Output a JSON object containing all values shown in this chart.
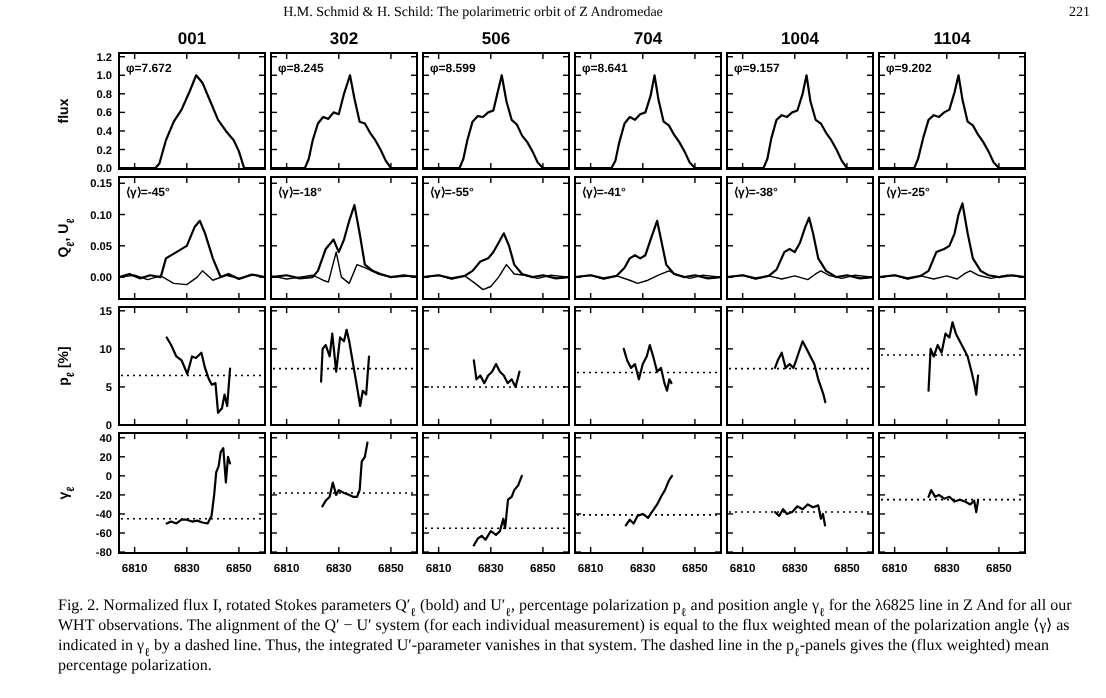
{
  "chart_data": [
    {
      "type": "line",
      "title": "001",
      "ylabel": "flux",
      "xlim": [
        6804,
        6860
      ],
      "xticks": [
        6810,
        6830,
        6850
      ],
      "ylim": [
        -0.01,
        1.24
      ],
      "yticks": [
        {
          "value": 0,
          "label": "0.0"
        },
        {
          "value": 0.2,
          "label": "0.2"
        },
        {
          "value": 0.4,
          "label": "0.4"
        },
        {
          "value": 0.6,
          "label": "0.6"
        },
        {
          "value": 0.8,
          "label": "0.8"
        },
        {
          "value": 1,
          "label": "1.0"
        },
        {
          "value": 1.2,
          "label": "1.2"
        }
      ],
      "tick_labels": "y",
      "annotations": [
        "φ=7.672"
      ],
      "series": [
        {
          "color": "#000000",
          "x": [
            6804,
            6818,
            6819.5,
            6822,
            6825,
            6828,
            6831,
            6833.6,
            6836,
            6839,
            6842,
            6845,
            6848,
            6850,
            6852,
            6860
          ],
          "values": [
            0,
            0,
            0.05,
            0.3,
            0.5,
            0.63,
            0.82,
            1.0,
            0.92,
            0.72,
            0.52,
            0.4,
            0.3,
            0.18,
            0,
            0
          ]
        }
      ]
    },
    {
      "type": "line",
      "title": "302",
      "xlim": [
        6804,
        6860
      ],
      "xticks": [
        6810,
        6830,
        6850
      ],
      "ylim": [
        -0.01,
        1.24
      ],
      "yticks": [
        0,
        0.2,
        0.4,
        0.6,
        0.8,
        1,
        1.2
      ],
      "tick_labels": false,
      "annotations": [
        "φ=8.245"
      ],
      "series": [
        {
          "color": "#000000",
          "x": [
            6804,
            6817,
            6818.5,
            6820,
            6822,
            6824,
            6826,
            6828,
            6830,
            6832,
            6834.3,
            6836,
            6838,
            6840,
            6842,
            6844,
            6846,
            6848,
            6850,
            6860
          ],
          "values": [
            0,
            0,
            0.1,
            0.3,
            0.48,
            0.55,
            0.53,
            0.6,
            0.58,
            0.8,
            1.0,
            0.75,
            0.5,
            0.48,
            0.38,
            0.3,
            0.2,
            0.08,
            0,
            0
          ]
        }
      ]
    },
    {
      "type": "line",
      "title": "506",
      "xlim": [
        6804,
        6860
      ],
      "xticks": [
        6810,
        6830,
        6850
      ],
      "ylim": [
        -0.01,
        1.24
      ],
      "yticks": [
        0,
        0.2,
        0.4,
        0.6,
        0.8,
        1,
        1.2
      ],
      "tick_labels": false,
      "annotations": [
        "φ=8.599"
      ],
      "series": [
        {
          "color": "#000000",
          "x": [
            6804,
            6818,
            6819.5,
            6821,
            6823,
            6825,
            6827,
            6829,
            6831,
            6832.5,
            6834.2,
            6836,
            6838,
            6840,
            6842,
            6844,
            6846,
            6848,
            6850,
            6860
          ],
          "values": [
            0,
            0,
            0.1,
            0.3,
            0.5,
            0.56,
            0.55,
            0.6,
            0.62,
            0.8,
            1.0,
            0.72,
            0.52,
            0.47,
            0.35,
            0.28,
            0.18,
            0.06,
            0,
            0
          ]
        }
      ]
    },
    {
      "type": "line",
      "title": "704",
      "xlim": [
        6804,
        6860
      ],
      "xticks": [
        6810,
        6830,
        6850
      ],
      "ylim": [
        -0.01,
        1.24
      ],
      "yticks": [
        0,
        0.2,
        0.4,
        0.6,
        0.8,
        1,
        1.2
      ],
      "tick_labels": false,
      "annotations": [
        "φ=8.641"
      ],
      "series": [
        {
          "color": "#000000",
          "x": [
            6804,
            6818,
            6819.5,
            6821,
            6823,
            6825,
            6827,
            6829,
            6831,
            6833,
            6834.5,
            6836,
            6838,
            6840,
            6842,
            6844,
            6846,
            6848,
            6850,
            6860
          ],
          "values": [
            0,
            0,
            0.08,
            0.28,
            0.48,
            0.55,
            0.52,
            0.58,
            0.6,
            0.78,
            1.0,
            0.74,
            0.5,
            0.46,
            0.36,
            0.28,
            0.18,
            0.06,
            0,
            0
          ]
        }
      ]
    },
    {
      "type": "line",
      "title": "1004",
      "xlim": [
        6804,
        6860
      ],
      "xticks": [
        6810,
        6830,
        6850
      ],
      "ylim": [
        -0.01,
        1.24
      ],
      "yticks": [
        0,
        0.2,
        0.4,
        0.6,
        0.8,
        1,
        1.2
      ],
      "tick_labels": false,
      "annotations": [
        "φ=9.157"
      ],
      "series": [
        {
          "color": "#000000",
          "x": [
            6804,
            6818,
            6819.5,
            6821,
            6823,
            6825,
            6827,
            6829,
            6831,
            6833,
            6834.5,
            6836,
            6838,
            6840,
            6842,
            6844,
            6846,
            6848,
            6850,
            6860
          ],
          "values": [
            0,
            0,
            0.1,
            0.32,
            0.52,
            0.57,
            0.55,
            0.6,
            0.62,
            0.8,
            1.0,
            0.72,
            0.52,
            0.48,
            0.38,
            0.3,
            0.2,
            0.08,
            0,
            0
          ]
        }
      ]
    },
    {
      "type": "line",
      "title": "1104",
      "xlim": [
        6804,
        6860
      ],
      "xticks": [
        6810,
        6830,
        6850
      ],
      "ylim": [
        -0.01,
        1.24
      ],
      "yticks": [
        0,
        0.2,
        0.4,
        0.6,
        0.8,
        1,
        1.2
      ],
      "tick_labels": false,
      "annotations": [
        "φ=9.202"
      ],
      "series": [
        {
          "color": "#000000",
          "x": [
            6804,
            6817.5,
            6819,
            6821,
            6823,
            6825,
            6827,
            6829,
            6831,
            6833,
            6834.5,
            6836,
            6838,
            6840,
            6842,
            6844,
            6846,
            6848,
            6850,
            6860
          ],
          "values": [
            0,
            0,
            0.1,
            0.33,
            0.52,
            0.57,
            0.55,
            0.6,
            0.63,
            0.82,
            1.0,
            0.74,
            0.5,
            0.46,
            0.36,
            0.28,
            0.18,
            0.06,
            0,
            0
          ]
        }
      ]
    },
    {
      "type": "line",
      "ylabel": "Q$_{ℓ}$, U$_{ℓ}$",
      "xlim": [
        6804,
        6860
      ],
      "xticks": [
        6810,
        6830,
        6850
      ],
      "ylim": [
        -0.035,
        0.16
      ],
      "yticks": [
        {
          "value": 0,
          "label": "0.00"
        },
        {
          "value": 0.05,
          "label": "0.05"
        },
        {
          "value": 0.1,
          "label": "0.10"
        },
        {
          "value": 0.15,
          "label": "0.15"
        }
      ],
      "tick_labels": "y",
      "annotations": [
        "⟨γ⟩=-45°"
      ],
      "series": [
        {
          "color": "#000000",
          "x": [
            6804,
            6808,
            6812,
            6816,
            6820,
            6822,
            6826,
            6830,
            6833,
            6835,
            6837,
            6840,
            6843,
            6846,
            6850,
            6855,
            6860
          ],
          "values": [
            0,
            0.005,
            -0.002,
            0.003,
            0,
            0.03,
            0.04,
            0.05,
            0.08,
            0.09,
            0.07,
            0.03,
            0,
            0.005,
            -0.003,
            0.004,
            0
          ]
        },
        {
          "color": "#000000",
          "x": [
            6804,
            6810,
            6815,
            6820,
            6825,
            6830,
            6834,
            6836,
            6840,
            6845,
            6850,
            6855,
            6860
          ],
          "values": [
            0,
            0.003,
            -0.004,
            0.002,
            -0.01,
            -0.012,
            0,
            0.01,
            -0.005,
            0.003,
            -0.002,
            0.004,
            0
          ]
        }
      ]
    },
    {
      "type": "line",
      "xlim": [
        6804,
        6860
      ],
      "xticks": [
        6810,
        6830,
        6850
      ],
      "ylim": [
        -0.035,
        0.16
      ],
      "yticks": [
        0,
        0.05,
        0.1,
        0.15
      ],
      "tick_labels": false,
      "annotations": [
        "⟨γ⟩=-18°"
      ],
      "series": [
        {
          "color": "#000000",
          "x": [
            6804,
            6810,
            6815,
            6820,
            6822,
            6825,
            6828,
            6830,
            6832,
            6834,
            6836,
            6838,
            6840,
            6843,
            6846,
            6850,
            6855,
            6860
          ],
          "values": [
            0,
            0.003,
            -0.002,
            0,
            0.01,
            0.045,
            0.06,
            0.04,
            0.06,
            0.09,
            0.115,
            0.07,
            0.02,
            0.01,
            0.005,
            0,
            0.003,
            0
          ]
        },
        {
          "color": "#000000",
          "x": [
            6804,
            6810,
            6815,
            6820,
            6824,
            6826,
            6829,
            6831,
            6834,
            6837,
            6840,
            6845,
            6850,
            6860
          ],
          "values": [
            0.002,
            -0.003,
            0,
            0.003,
            -0.005,
            -0.008,
            0.04,
            0,
            -0.01,
            0.02,
            0.015,
            0.005,
            0,
            0.002
          ]
        }
      ]
    },
    {
      "type": "line",
      "xlim": [
        6804,
        6860
      ],
      "xticks": [
        6810,
        6830,
        6850
      ],
      "ylim": [
        -0.035,
        0.16
      ],
      "yticks": [
        0,
        0.05,
        0.1,
        0.15
      ],
      "tick_labels": false,
      "annotations": [
        "⟨γ⟩=-55°"
      ],
      "series": [
        {
          "color": "#000000",
          "x": [
            6804,
            6810,
            6815,
            6820,
            6823,
            6826,
            6829,
            6831,
            6833,
            6835,
            6837,
            6839,
            6842,
            6846,
            6850,
            6855,
            6860
          ],
          "values": [
            0,
            0.003,
            -0.002,
            0.002,
            0.01,
            0.025,
            0.03,
            0.04,
            0.055,
            0.07,
            0.05,
            0.02,
            0.005,
            0,
            0.003,
            -0.002,
            0
          ]
        },
        {
          "color": "#000000",
          "x": [
            6804,
            6810,
            6815,
            6820,
            6824,
            6827,
            6830,
            6833,
            6836,
            6839,
            6843,
            6848,
            6853,
            6860
          ],
          "values": [
            0,
            0.003,
            -0.003,
            0.002,
            -0.01,
            -0.02,
            -0.015,
            0,
            0.02,
            0.005,
            0.003,
            -0.002,
            0.003,
            0
          ]
        }
      ]
    },
    {
      "type": "line",
      "xlim": [
        6804,
        6860
      ],
      "xticks": [
        6810,
        6830,
        6850
      ],
      "ylim": [
        -0.035,
        0.16
      ],
      "yticks": [
        0,
        0.05,
        0.1,
        0.15
      ],
      "tick_labels": false,
      "annotations": [
        "⟨γ⟩=-41°"
      ],
      "series": [
        {
          "color": "#000000",
          "x": [
            6804,
            6810,
            6815,
            6820,
            6823,
            6825,
            6827,
            6829,
            6831,
            6833,
            6835.5,
            6837,
            6839,
            6842,
            6846,
            6850,
            6855,
            6860
          ],
          "values": [
            0,
            0.003,
            -0.002,
            0.002,
            0.015,
            0.03,
            0.035,
            0.03,
            0.035,
            0.06,
            0.09,
            0.06,
            0.02,
            0.005,
            0,
            0.003,
            -0.002,
            0
          ]
        },
        {
          "color": "#000000",
          "x": [
            6804,
            6810,
            6815,
            6820,
            6825,
            6828,
            6832,
            6836,
            6840,
            6843,
            6848,
            6853,
            6860
          ],
          "values": [
            0,
            0.003,
            -0.003,
            0.002,
            -0.005,
            -0.01,
            -0.005,
            0.003,
            0.01,
            0.004,
            -0.002,
            0.003,
            0
          ]
        }
      ]
    },
    {
      "type": "line",
      "xlim": [
        6804,
        6860
      ],
      "xticks": [
        6810,
        6830,
        6850
      ],
      "ylim": [
        -0.035,
        0.16
      ],
      "yticks": [
        0,
        0.05,
        0.1,
        0.15
      ],
      "tick_labels": false,
      "annotations": [
        "⟨γ⟩=-38°"
      ],
      "series": [
        {
          "color": "#000000",
          "x": [
            6804,
            6810,
            6815,
            6820,
            6823,
            6826,
            6828,
            6830,
            6832,
            6834,
            6835.5,
            6837,
            6839,
            6842,
            6846,
            6850,
            6855,
            6860
          ],
          "values": [
            0,
            0.003,
            -0.002,
            0.002,
            0.012,
            0.04,
            0.045,
            0.04,
            0.055,
            0.08,
            0.095,
            0.07,
            0.03,
            0.01,
            0,
            0.003,
            -0.002,
            0
          ]
        },
        {
          "color": "#000000",
          "x": [
            6804,
            6810,
            6815,
            6820,
            6825,
            6830,
            6835,
            6838,
            6840,
            6843,
            6848,
            6853,
            6860
          ],
          "values": [
            0,
            0.003,
            -0.003,
            0.002,
            -0.003,
            0.002,
            -0.004,
            0.005,
            0.01,
            0.003,
            -0.002,
            0.003,
            0
          ]
        }
      ]
    },
    {
      "type": "line",
      "xlim": [
        6804,
        6860
      ],
      "xticks": [
        6810,
        6830,
        6850
      ],
      "ylim": [
        -0.035,
        0.16
      ],
      "yticks": [
        0,
        0.05,
        0.1,
        0.15
      ],
      "tick_labels": false,
      "annotations": [
        "⟨γ⟩=-25°"
      ],
      "series": [
        {
          "color": "#000000",
          "x": [
            6804,
            6810,
            6815,
            6820,
            6823,
            6826,
            6829,
            6831,
            6833,
            6834.5,
            6836,
            6838,
            6840,
            6843,
            6846,
            6850,
            6855,
            6860
          ],
          "values": [
            0,
            0.003,
            -0.002,
            0.002,
            0.01,
            0.04,
            0.045,
            0.05,
            0.07,
            0.1,
            0.118,
            0.07,
            0.03,
            0.01,
            0.003,
            0,
            0.003,
            0
          ]
        },
        {
          "color": "#000000",
          "x": [
            6804,
            6810,
            6815,
            6820,
            6825,
            6830,
            6834,
            6837,
            6839,
            6842,
            6847,
            6853,
            6860
          ],
          "values": [
            0,
            0.003,
            -0.003,
            0.002,
            -0.003,
            0.002,
            -0.003,
            0.006,
            0.01,
            0.003,
            -0.002,
            0.003,
            0
          ]
        }
      ]
    },
    {
      "type": "line",
      "ylabel": "p$_{ℓ}$ [%]",
      "xlim": [
        6804,
        6860
      ],
      "xticks": [
        6810,
        6830,
        6850
      ],
      "ylim": [
        0,
        15.5
      ],
      "yticks": [
        0,
        5,
        10,
        15
      ],
      "tick_labels": "y",
      "ref_lines": [
        {
          "axis": "y",
          "value": 6.5,
          "line_style": "dotted"
        }
      ],
      "series": [
        {
          "color": "#000000",
          "x": [
            6822.3,
            6824,
            6826,
            6828,
            6830.2,
            6832,
            6833.5,
            6835.6,
            6837,
            6838.5,
            6839.6,
            6841,
            6842,
            6843.5,
            6844.5,
            6845.5,
            6846.6
          ],
          "values": [
            11.5,
            10.5,
            9,
            8.5,
            6.7,
            9,
            8.8,
            9.5,
            7.5,
            6,
            5.3,
            5.5,
            1.6,
            2.2,
            4,
            2.5,
            7.4
          ]
        }
      ]
    },
    {
      "type": "line",
      "xlim": [
        6804,
        6860
      ],
      "xticks": [
        6810,
        6830,
        6850
      ],
      "ylim": [
        0,
        15.5
      ],
      "yticks": [
        0,
        5,
        10,
        15
      ],
      "tick_labels": false,
      "ref_lines": [
        {
          "axis": "y",
          "value": 7.4,
          "line_style": "dotted"
        }
      ],
      "series": [
        {
          "color": "#000000",
          "x": [
            6823.2,
            6823.8,
            6825,
            6826.5,
            6827.5,
            6829,
            6830.5,
            6832,
            6833,
            6834,
            6835.5,
            6837,
            6838.2,
            6839.2,
            6840.5,
            6841.6
          ],
          "values": [
            5.7,
            10,
            10.5,
            9,
            12,
            7,
            11.5,
            11,
            12.5,
            11,
            8,
            5,
            2.5,
            4.5,
            4,
            9
          ]
        }
      ]
    },
    {
      "type": "line",
      "xlim": [
        6804,
        6860
      ],
      "xticks": [
        6810,
        6830,
        6850
      ],
      "ylim": [
        0,
        15.5
      ],
      "yticks": [
        0,
        5,
        10,
        15
      ],
      "tick_labels": false,
      "ref_lines": [
        {
          "axis": "y",
          "value": 5,
          "line_style": "dotted"
        }
      ],
      "series": [
        {
          "color": "#000000",
          "x": [
            6823.5,
            6824.5,
            6826,
            6827.5,
            6829,
            6830.5,
            6832,
            6833.5,
            6835,
            6836.5,
            6838,
            6839.5,
            6841
          ],
          "values": [
            8.5,
            6,
            6.5,
            5.5,
            6.5,
            7,
            8,
            7,
            6.5,
            5.5,
            6,
            5,
            7
          ]
        }
      ]
    },
    {
      "type": "line",
      "xlim": [
        6804,
        6860
      ],
      "xticks": [
        6810,
        6830,
        6850
      ],
      "ylim": [
        0,
        15.5
      ],
      "yticks": [
        0,
        5,
        10,
        15
      ],
      "tick_labels": false,
      "ref_lines": [
        {
          "axis": "y",
          "value": 6.9,
          "line_style": "dotted"
        }
      ],
      "series": [
        {
          "color": "#000000",
          "x": [
            6822.7,
            6824,
            6825.5,
            6827,
            6828.5,
            6830,
            6831.5,
            6832.7,
            6834,
            6835.5,
            6837,
            6838.3,
            6839.3,
            6840.2,
            6841
          ],
          "values": [
            10,
            8.5,
            7.5,
            8,
            6,
            8,
            9,
            10.5,
            9,
            7,
            7.5,
            5.5,
            4.5,
            6,
            5.5
          ]
        }
      ]
    },
    {
      "type": "line",
      "xlim": [
        6804,
        6860
      ],
      "xticks": [
        6810,
        6830,
        6850
      ],
      "ylim": [
        0,
        15.5
      ],
      "yticks": [
        0,
        5,
        10,
        15
      ],
      "tick_labels": false,
      "ref_lines": [
        {
          "axis": "y",
          "value": 7.4,
          "line_style": "dotted"
        }
      ],
      "series": [
        {
          "color": "#000000",
          "x": [
            6822.4,
            6823.5,
            6825,
            6826.5,
            6828,
            6829.5,
            6831,
            6833,
            6834.5,
            6836,
            6837.5,
            6839,
            6840,
            6841,
            6841.7
          ],
          "values": [
            7.5,
            8.5,
            9.5,
            7.5,
            8,
            7.5,
            9,
            11,
            10,
            9,
            8,
            6,
            5,
            4,
            3
          ]
        }
      ]
    },
    {
      "type": "line",
      "xlim": [
        6804,
        6860
      ],
      "xticks": [
        6810,
        6830,
        6850
      ],
      "ylim": [
        0,
        15.5
      ],
      "yticks": [
        0,
        5,
        10,
        15
      ],
      "tick_labels": false,
      "ref_lines": [
        {
          "axis": "y",
          "value": 9.2,
          "line_style": "dotted"
        }
      ],
      "series": [
        {
          "color": "#000000",
          "x": [
            6823,
            6823.8,
            6825,
            6826.5,
            6828,
            6829.5,
            6831,
            6832.2,
            6833.5,
            6835,
            6836.5,
            6838,
            6839.5,
            6840.5,
            6841.3,
            6842
          ],
          "values": [
            4.5,
            10,
            9,
            10.5,
            9.5,
            12,
            11.5,
            13.5,
            12,
            11,
            10,
            9,
            7,
            5.5,
            4,
            6.5
          ]
        }
      ]
    },
    {
      "type": "line",
      "ylabel": "γ$_{ℓ}$",
      "xlim": [
        6804,
        6860
      ],
      "xticks": [
        6810,
        6830,
        6850
      ],
      "ylim": [
        -81,
        45
      ],
      "yticks": [
        -80,
        -60,
        -40,
        -20,
        0,
        20,
        40
      ],
      "ref_lines": [
        {
          "axis": "y",
          "value": -45,
          "line_style": "dotted"
        }
      ],
      "series": [
        {
          "color": "#000000",
          "x": [
            6822.3,
            6824,
            6826,
            6828,
            6830,
            6832,
            6834,
            6836,
            6838,
            6839.5,
            6840.5,
            6841.3,
            6842.2,
            6843,
            6844,
            6845,
            6845.8,
            6846.6
          ],
          "values": [
            -50,
            -48,
            -50,
            -46,
            -46,
            -48,
            -47,
            -49,
            -50,
            -42,
            -20,
            4,
            10,
            25,
            29,
            -7,
            20,
            13
          ]
        }
      ]
    },
    {
      "type": "line",
      "xlim": [
        6804,
        6860
      ],
      "xticks": [
        6810,
        6830,
        6850
      ],
      "ylim": [
        -81,
        45
      ],
      "yticks": [
        -80,
        -60,
        -40,
        -20,
        0,
        20,
        40
      ],
      "tick_labels": "x",
      "ref_lines": [
        {
          "axis": "y",
          "value": -18,
          "line_style": "dotted"
        }
      ],
      "series": [
        {
          "color": "#000000",
          "x": [
            6823.7,
            6825,
            6826.5,
            6827.7,
            6829,
            6830,
            6832,
            6834,
            6835.5,
            6837,
            6838,
            6838.8,
            6840,
            6841
          ],
          "values": [
            -32,
            -26,
            -22,
            -7,
            -20,
            -15,
            -18,
            -20,
            -22,
            -22,
            -15,
            15,
            20,
            35
          ]
        }
      ]
    },
    {
      "type": "line",
      "xlim": [
        6804,
        6860
      ],
      "xticks": [
        6810,
        6830,
        6850
      ],
      "ylim": [
        -81,
        45
      ],
      "yticks": [
        -80,
        -60,
        -40,
        -20,
        0,
        20,
        40
      ],
      "tick_labels": "x",
      "ref_lines": [
        {
          "axis": "y",
          "value": -55,
          "line_style": "dotted"
        }
      ],
      "series": [
        {
          "color": "#000000",
          "x": [
            6823.5,
            6825,
            6826.5,
            6828,
            6830,
            6832,
            6833.5,
            6834.8,
            6835.5,
            6836.6,
            6838,
            6839,
            6840.5,
            6841.9
          ],
          "values": [
            -73,
            -66,
            -63,
            -67,
            -58,
            -62,
            -58,
            -45,
            -55,
            -25,
            -22,
            -15,
            -10,
            0
          ]
        }
      ]
    },
    {
      "type": "line",
      "xlim": [
        6804,
        6860
      ],
      "xticks": [
        6810,
        6830,
        6850
      ],
      "ylim": [
        -81,
        45
      ],
      "yticks": [
        -80,
        -60,
        -40,
        -20,
        0,
        20,
        40
      ],
      "tick_labels": "x",
      "ref_lines": [
        {
          "axis": "y",
          "value": -41,
          "line_style": "dotted"
        }
      ],
      "series": [
        {
          "color": "#000000",
          "x": [
            6823.5,
            6825,
            6826.5,
            6828,
            6830,
            6832,
            6834,
            6835.5,
            6837,
            6838.5,
            6840,
            6841.2
          ],
          "values": [
            -52,
            -46,
            -50,
            -42,
            -40,
            -44,
            -36,
            -30,
            -22,
            -15,
            -5,
            0
          ]
        }
      ]
    },
    {
      "type": "line",
      "xlim": [
        6804,
        6860
      ],
      "xticks": [
        6810,
        6830,
        6850
      ],
      "ylim": [
        -81,
        45
      ],
      "yticks": [
        -80,
        -60,
        -40,
        -20,
        0,
        20,
        40
      ],
      "tick_labels": "x",
      "ref_lines": [
        {
          "axis": "y",
          "value": -38,
          "line_style": "dotted"
        }
      ],
      "series": [
        {
          "color": "#000000",
          "x": [
            6822.4,
            6824,
            6825.5,
            6827,
            6829,
            6831,
            6833,
            6835,
            6837,
            6839,
            6840,
            6840.8,
            6841.6
          ],
          "values": [
            -38,
            -42,
            -35,
            -40,
            -38,
            -32,
            -35,
            -30,
            -33,
            -31,
            -45,
            -40,
            -52
          ]
        }
      ]
    },
    {
      "type": "line",
      "xlim": [
        6804,
        6860
      ],
      "xticks": [
        6810,
        6830,
        6850
      ],
      "ylim": [
        -81,
        45
      ],
      "yticks": [
        -80,
        -60,
        -40,
        -20,
        0,
        20,
        40
      ],
      "tick_labels": "x",
      "ref_lines": [
        {
          "axis": "y",
          "value": -25,
          "line_style": "dotted"
        }
      ],
      "series": [
        {
          "color": "#000000",
          "x": [
            6823,
            6824,
            6825.5,
            6827,
            6829,
            6831,
            6833,
            6835,
            6837,
            6839,
            6840.5,
            6841.3,
            6842
          ],
          "values": [
            -22,
            -15,
            -22,
            -20,
            -24,
            -22,
            -27,
            -25,
            -27,
            -30,
            -26,
            -38,
            -26
          ]
        }
      ]
    },
    {
      "type": "other",
      "title": "H.M. Schmid & H. Schild: The polarimetric orbit of Z Andromedae",
      "annotations": [
        "221",
        "Fig. 2. Normalized flux I, rotated Stokes parameters Q′$_{ℓ}$ (bold) and U′$_{ℓ}$, percentage polarization p$_{ℓ}$ and position angle γ$_{ℓ}$ for the λ6825 line in Z And for all our WHT observations. The alignment of the Q′ − U′ system (for each individual measurement) is equal to the flux weighted mean of the polarization angle ⟨γ⟩ as indicated in γ$_{ℓ}$ by a dashed line. Thus, the integrated U′-parameter vanishes in that system. The dashed line in the p$_{ℓ}$-panels gives the (flux weighted) mean percentage polarization."
      ]
    }
  ]
}
